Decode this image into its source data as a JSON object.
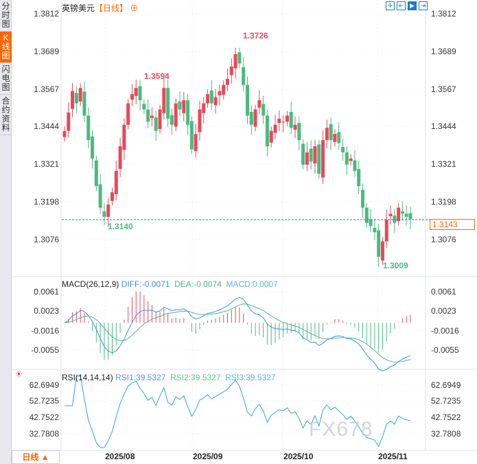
{
  "sidebar": {
    "items": [
      {
        "label": "分时图"
      },
      {
        "label": "K线图",
        "active": true
      },
      {
        "label": "闪电图"
      },
      {
        "label": "合约资料"
      }
    ]
  },
  "header": {
    "title": "英镑美元",
    "period_tag": "【日线】",
    "add_icon": "plus-circle-icon"
  },
  "toolbar": {
    "icons": [
      "crosshair-icon",
      "fit-range-icon",
      "chart-axis-icon",
      "scroll-right-icon"
    ]
  },
  "price_axis": {
    "ticks": [
      "1.3812",
      "1.3689",
      "1.3567",
      "1.3444",
      "1.3321",
      "1.3198",
      "1.3076"
    ],
    "current": "1.3143"
  },
  "annotations": {
    "high1": "1.3594",
    "high2": "1.3726",
    "low1": "1.3140",
    "low2": "1.3009"
  },
  "macd": {
    "label": "MACD(26,12,9)",
    "diff": "DIFF:-0.0071",
    "dea": "DEA:-0.0074",
    "macd": "MACD:0.0007",
    "ticks": [
      "0.0061",
      "0.0023",
      "-0.0016",
      "-0.0055"
    ]
  },
  "rsi": {
    "label": "RSI(14,14,14)",
    "rsi1": "RSI1:39.5327",
    "rsi2": "RSI2:39.5327",
    "rsi3": "RSI3:39.5327",
    "ticks": [
      "62.6949",
      "52.7235",
      "42.7522",
      "32.7808"
    ]
  },
  "x_axis": {
    "labels": [
      "2025/08",
      "2025/09",
      "2025/10",
      "2025/11"
    ]
  },
  "footer": {
    "period": "日线 ▲"
  },
  "watermark": "FX678",
  "colors": {
    "up": "#e8485a",
    "down": "#4cba7f",
    "accent": "#ff6600",
    "diff": "#3a8ee6",
    "dea": "#4cba7f",
    "rsi": "#2aa5e0"
  },
  "chart_data": {
    "type": "candlestick",
    "close": [
      1.343,
      1.349,
      1.356,
      1.352,
      1.357,
      1.348,
      1.34,
      1.334,
      1.325,
      1.318,
      1.315,
      1.319,
      1.323,
      1.33,
      1.338,
      1.345,
      1.352,
      1.355,
      1.357,
      1.353,
      1.35,
      1.346,
      1.348,
      1.343,
      1.35,
      1.357,
      1.347,
      1.345,
      1.352,
      1.35,
      1.353,
      1.345,
      1.337,
      1.342,
      1.35,
      1.352,
      1.355,
      1.352,
      1.354,
      1.356,
      1.358,
      1.36,
      1.364,
      1.368,
      1.365,
      1.358,
      1.348,
      1.345,
      1.35,
      1.353,
      1.348,
      1.338,
      1.343,
      1.345,
      1.347,
      1.346,
      1.348,
      1.344,
      1.345,
      1.34,
      1.332,
      1.336,
      1.333,
      1.338,
      1.329,
      1.34,
      1.344,
      1.34,
      1.342,
      1.339,
      1.336,
      1.332,
      1.334,
      1.33,
      1.325,
      1.318,
      1.313,
      1.312,
      1.31,
      1.302,
      1.307,
      1.314,
      1.316,
      1.313,
      1.318,
      1.316,
      1.315,
      1.3143
    ],
    "ylim": [
      1.2995,
      1.3812
    ],
    "x_labels": [
      "2025/08",
      "2025/09",
      "2025/10",
      "2025/11"
    ]
  }
}
